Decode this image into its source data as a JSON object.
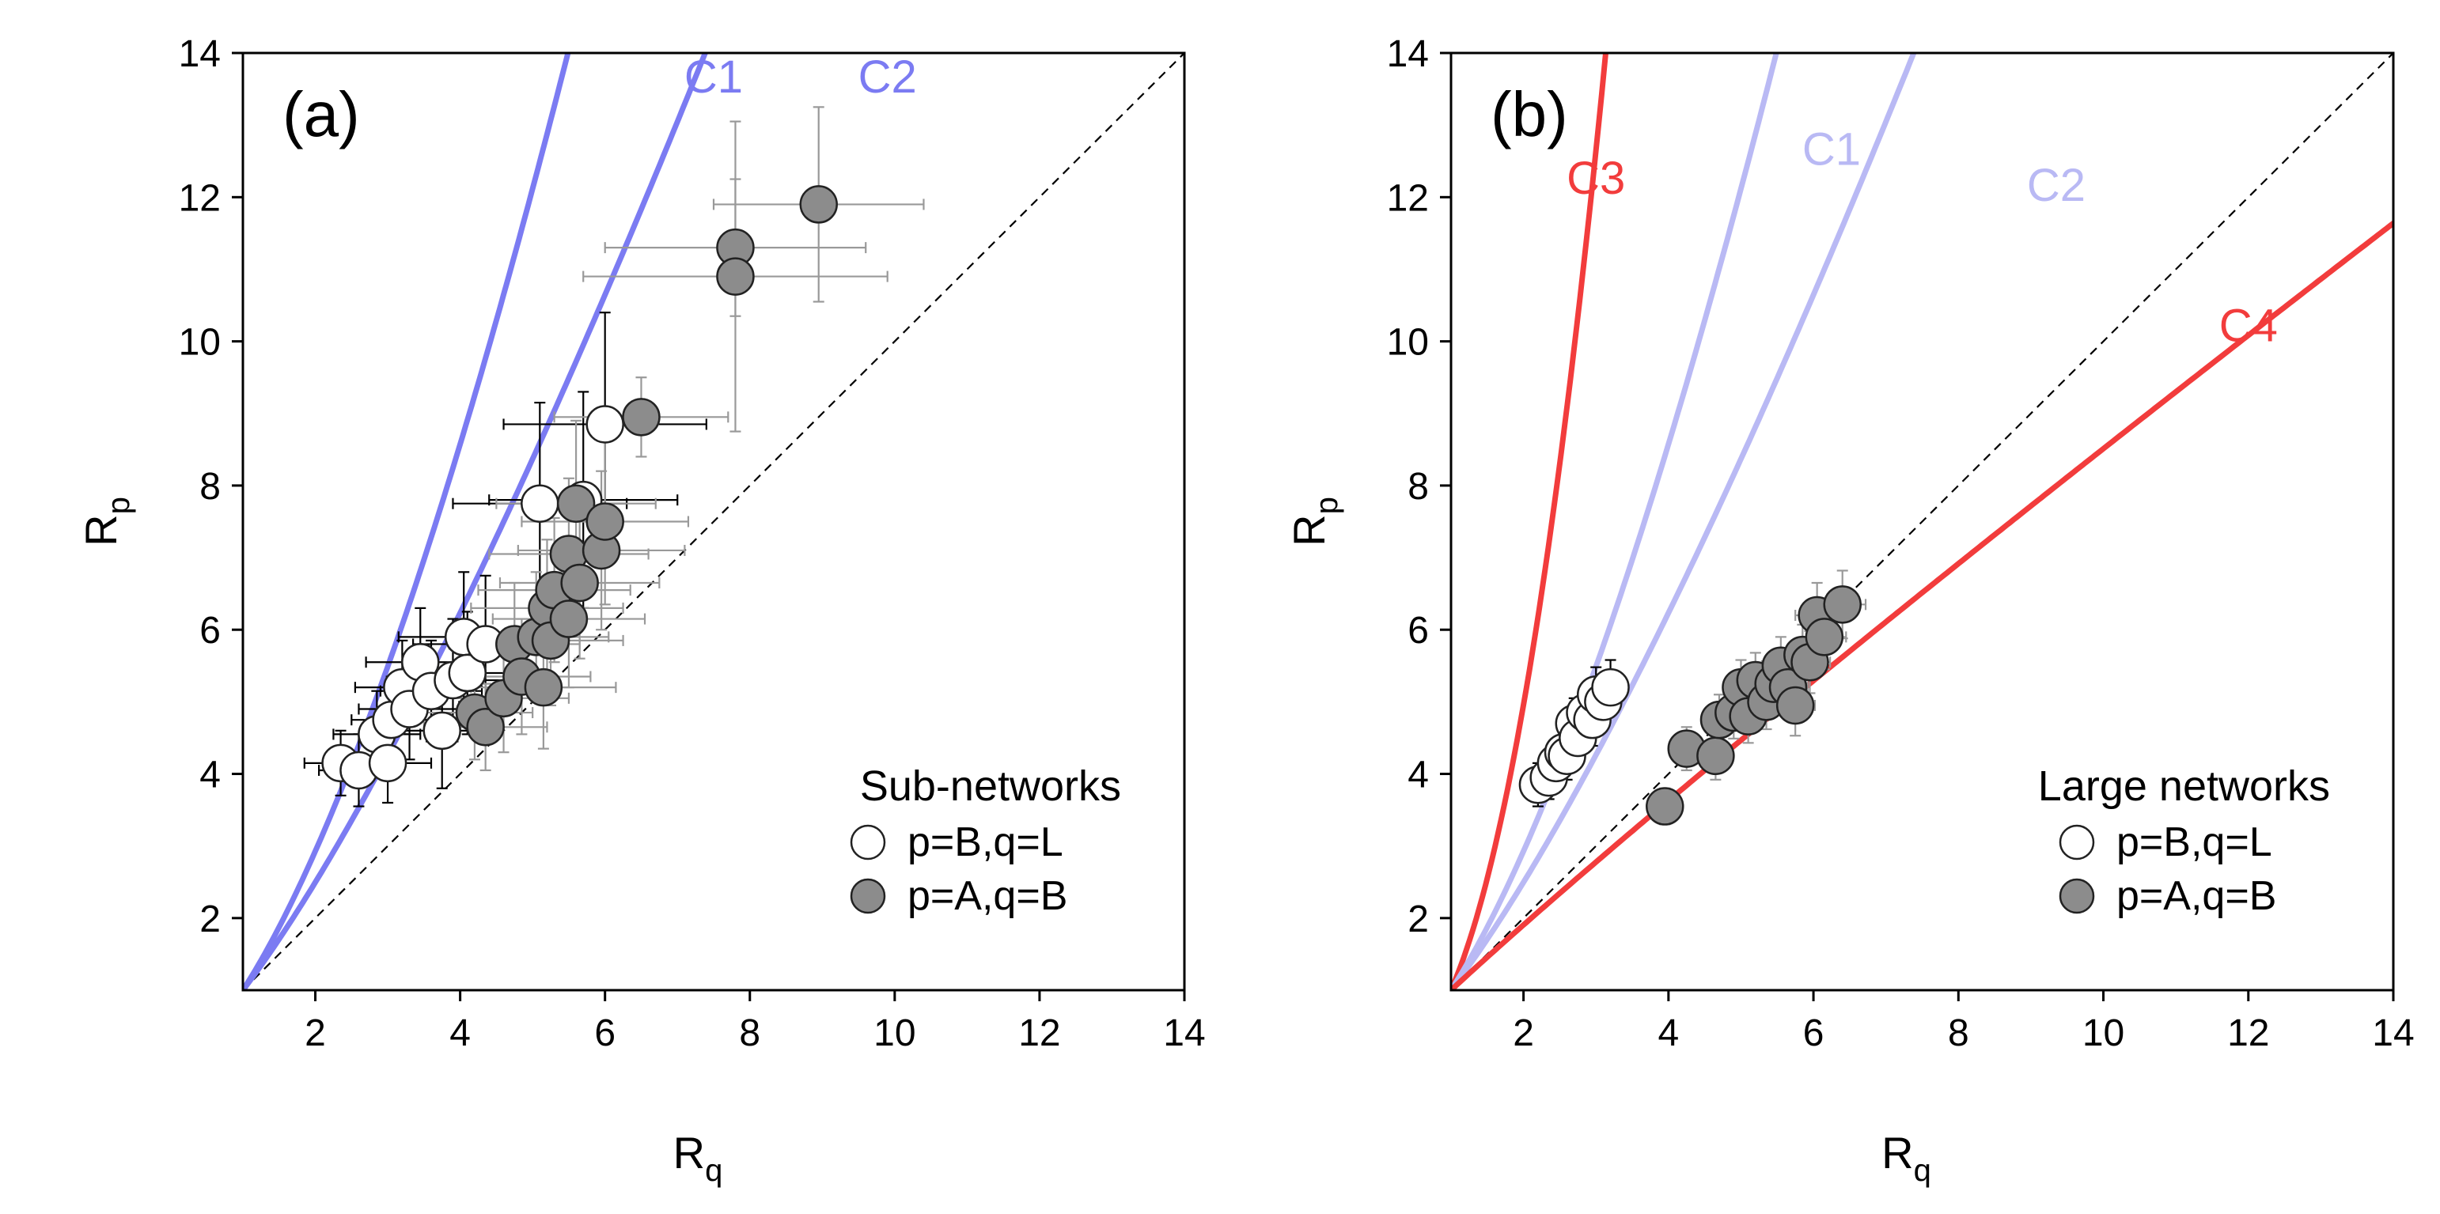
{
  "chart_data": [
    {
      "type": "scatter",
      "panel_label": "(a)",
      "xlabel": "R",
      "xlabel_sub": "q",
      "ylabel": "R",
      "ylabel_sub": "p",
      "xlim": [
        1,
        14
      ],
      "ylim": [
        1,
        14
      ],
      "xticks": [
        2,
        4,
        6,
        8,
        10,
        12,
        14
      ],
      "yticks": [
        2,
        4,
        6,
        8,
        10,
        12,
        14
      ],
      "diagonal": true,
      "curves": [
        {
          "name": "C1",
          "color": "#7b7bf2",
          "exponent": 1.55,
          "label_pos": [
            7.5,
            13.45
          ]
        },
        {
          "name": "C2",
          "color": "#7b7bf2",
          "exponent": 1.32,
          "label_pos": [
            9.9,
            13.45
          ]
        }
      ],
      "legend": {
        "title": "Sub-networks",
        "entries": [
          {
            "label": "p=B,q=L",
            "marker": "open"
          },
          {
            "label": "p=A,q=B",
            "marker": "filled"
          }
        ]
      },
      "series": [
        {
          "name": "p=B,q=L",
          "marker": "open",
          "err_color": "#000000",
          "x": [
            2.35,
            2.6,
            2.85,
            3.0,
            3.05,
            3.2,
            3.3,
            3.45,
            3.6,
            3.75,
            3.9,
            4.05,
            4.1,
            4.35,
            5.1,
            5.7,
            6.0
          ],
          "y": [
            4.15,
            4.05,
            4.55,
            4.15,
            4.75,
            5.2,
            4.9,
            5.55,
            5.15,
            4.6,
            5.3,
            5.9,
            5.4,
            5.8,
            7.75,
            7.8,
            8.85
          ],
          "xerr": [
            0.5,
            0.55,
            0.6,
            0.6,
            0.55,
            0.65,
            0.7,
            0.75,
            0.7,
            0.8,
            0.85,
            0.9,
            0.85,
            1.0,
            1.2,
            1.3,
            1.4
          ],
          "yerr": [
            0.45,
            0.5,
            0.6,
            0.55,
            0.6,
            0.65,
            0.7,
            0.75,
            0.7,
            0.8,
            0.85,
            0.9,
            0.85,
            0.95,
            1.4,
            1.5,
            1.55
          ]
        },
        {
          "name": "p=A,q=B",
          "marker": "filled",
          "err_color": "#999999",
          "x": [
            4.2,
            4.35,
            4.6,
            4.75,
            4.85,
            5.05,
            5.15,
            5.2,
            5.25,
            5.3,
            5.5,
            5.5,
            5.6,
            5.65,
            5.95,
            6.0,
            6.5,
            7.8,
            7.8,
            8.95
          ],
          "y": [
            4.85,
            4.65,
            5.05,
            5.8,
            5.35,
            5.9,
            5.2,
            6.3,
            5.85,
            6.55,
            7.05,
            6.15,
            7.75,
            6.65,
            7.1,
            7.5,
            8.95,
            11.3,
            10.9,
            11.9
          ],
          "xerr": [
            0.8,
            0.85,
            0.9,
            0.9,
            0.95,
            1.0,
            1.0,
            1.05,
            1.0,
            1.05,
            1.1,
            1.05,
            1.1,
            1.1,
            1.15,
            1.15,
            1.2,
            1.8,
            2.1,
            1.45
          ],
          "yerr": [
            0.65,
            0.6,
            0.75,
            0.85,
            0.8,
            0.9,
            0.85,
            0.95,
            0.9,
            1.0,
            1.05,
            0.95,
            1.15,
            1.05,
            1.1,
            1.15,
            0.55,
            0.95,
            2.15,
            1.35
          ]
        }
      ]
    },
    {
      "type": "scatter",
      "panel_label": "(b)",
      "xlabel": "R",
      "xlabel_sub": "q",
      "ylabel": "R",
      "ylabel_sub": "p",
      "xlim": [
        1,
        14
      ],
      "ylim": [
        1,
        14
      ],
      "xticks": [
        2,
        4,
        6,
        8,
        10,
        12,
        14
      ],
      "yticks": [
        2,
        4,
        6,
        8,
        10,
        12,
        14
      ],
      "diagonal": true,
      "curves": [
        {
          "name": "C3",
          "color": "#f23c3c",
          "exponent": 2.31,
          "label_pos": [
            3.0,
            12.05
          ]
        },
        {
          "name": "C1",
          "color": "#b9b9f4",
          "exponent": 1.55,
          "label_pos": [
            6.25,
            12.45
          ]
        },
        {
          "name": "C2",
          "color": "#b9b9f4",
          "exponent": 1.32,
          "label_pos": [
            9.35,
            11.95
          ]
        },
        {
          "name": "C4",
          "color": "#f23c3c",
          "exponent": 0.93,
          "label_pos": [
            12.0,
            10.0
          ]
        }
      ],
      "legend": {
        "title": "Large networks",
        "entries": [
          {
            "label": "p=B,q=L",
            "marker": "open"
          },
          {
            "label": "p=A,q=B",
            "marker": "filled"
          }
        ]
      },
      "series": [
        {
          "name": "p=B,q=L",
          "marker": "open",
          "err_color": "#000000",
          "x": [
            2.2,
            2.35,
            2.45,
            2.55,
            2.6,
            2.7,
            2.75,
            2.85,
            2.95,
            3.0,
            3.1,
            3.2
          ],
          "y": [
            3.85,
            3.95,
            4.15,
            4.3,
            4.25,
            4.7,
            4.5,
            4.85,
            4.75,
            5.1,
            5.0,
            5.2
          ],
          "xerr": [
            0.12,
            0.12,
            0.13,
            0.13,
            0.13,
            0.14,
            0.14,
            0.15,
            0.15,
            0.15,
            0.15,
            0.16
          ],
          "yerr": [
            0.3,
            0.3,
            0.32,
            0.32,
            0.33,
            0.35,
            0.34,
            0.36,
            0.36,
            0.38,
            0.37,
            0.38
          ]
        },
        {
          "name": "p=A,q=B",
          "marker": "filled",
          "err_color": "#999999",
          "x": [
            3.95,
            4.25,
            4.65,
            4.7,
            4.9,
            5.0,
            5.1,
            5.2,
            5.35,
            5.45,
            5.55,
            5.65,
            5.75,
            5.85,
            5.95,
            6.05,
            6.15,
            6.4
          ],
          "y": [
            3.55,
            4.35,
            4.25,
            4.75,
            4.85,
            5.2,
            4.8,
            5.3,
            5.0,
            5.25,
            5.5,
            5.2,
            4.95,
            5.65,
            5.55,
            6.2,
            5.9,
            6.35
          ],
          "xerr": [
            0.15,
            0.18,
            0.2,
            0.22,
            0.22,
            0.24,
            0.24,
            0.25,
            0.25,
            0.26,
            0.26,
            0.27,
            0.27,
            0.28,
            0.28,
            0.3,
            0.3,
            0.32
          ],
          "yerr": [
            0.25,
            0.3,
            0.33,
            0.35,
            0.36,
            0.38,
            0.37,
            0.38,
            0.38,
            0.4,
            0.4,
            0.4,
            0.42,
            0.42,
            0.43,
            0.45,
            0.45,
            0.47
          ]
        }
      ]
    }
  ]
}
